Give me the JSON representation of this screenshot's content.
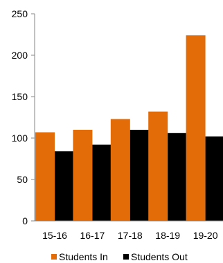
{
  "chart_data": {
    "type": "bar",
    "categories": [
      "15-16",
      "16-17",
      "17-18",
      "18-19",
      "19-20"
    ],
    "series": [
      {
        "name": "Students In",
        "values": [
          107,
          110,
          123,
          132,
          224
        ],
        "color": "#E36C09"
      },
      {
        "name": "Students Out",
        "values": [
          84,
          92,
          110,
          106,
          102
        ],
        "color": "#000000"
      }
    ],
    "ylim": [
      0,
      250
    ],
    "yticks": [
      0,
      50,
      100,
      150,
      200,
      250
    ],
    "grid": false,
    "legend_position": "bottom"
  }
}
